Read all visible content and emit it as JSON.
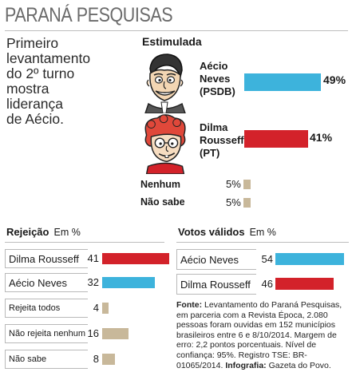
{
  "header": {
    "title": "PARANÁ PESQUISAS",
    "lead_lines": [
      "Primeiro",
      "levantamento",
      "do 2º turno",
      "mostra",
      "liderança",
      "de Aécio."
    ]
  },
  "colors": {
    "aecio": "#3db3dc",
    "dilma": "#d3222a",
    "other": "#c8b89a",
    "rule": "#bdbdbd"
  },
  "icons": [
    "aecio-caricature-icon",
    "dilma-caricature-icon"
  ],
  "chart_data": [
    {
      "type": "bar",
      "title": "Estimulada",
      "unit_suffix": "%",
      "categories": [
        "Aécio Neves (PSDB)",
        "Dilma Rousseff (PT)",
        "Nenhum",
        "Não sabe"
      ],
      "label_lines": [
        [
          "Aécio",
          "Neves",
          "(PSDB)"
        ],
        [
          "Dilma",
          "Rousseff",
          "(PT)"
        ],
        [
          "Nenhum"
        ],
        [
          "Não sabe"
        ]
      ],
      "values": [
        49,
        41,
        5,
        5
      ],
      "value_labels": [
        "49%",
        "41%",
        "5%",
        "5%"
      ],
      "xlim": [
        0,
        49
      ]
    },
    {
      "type": "bar",
      "title": "Rejeição",
      "unit": "Em %",
      "categories": [
        "Dilma Rousseff",
        "Aécio Neves",
        "Rejeita todos",
        "Não rejeita nenhum",
        "Não sabe"
      ],
      "values": [
        41,
        32,
        4,
        16,
        8
      ],
      "value_labels": [
        "41",
        "32",
        "4",
        "16",
        "8"
      ],
      "xlim": [
        0,
        41
      ]
    },
    {
      "type": "bar",
      "title": "Votos válidos",
      "unit": "Em %",
      "categories": [
        "Aécio Neves",
        "Dilma Rousseff"
      ],
      "values": [
        54,
        46
      ],
      "value_labels": [
        "54",
        "46"
      ],
      "xlim": [
        0,
        54
      ]
    }
  ],
  "source": {
    "fonte_label": "Fonte:",
    "fonte_text": "Levantamento do Paraná Pesquisas, em parceria com a Revista Época, 2.080 pessoas foram ouvidas em 152 municípios brasileiros entre 6 e 8/10/2014. Margem de erro: 2,2 pontos porcentuais. Nível de confiança: 95%. Registro TSE: BR-01065/2014.",
    "infografia_label": "Infografia:",
    "infografia_text": "Gazeta do Povo."
  }
}
